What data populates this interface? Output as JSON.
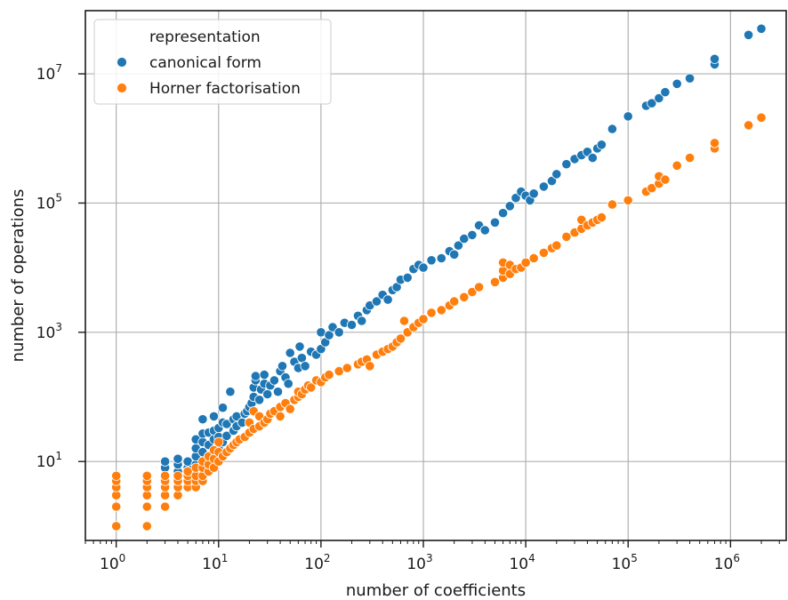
{
  "chart_data": {
    "type": "scatter",
    "x_scale": "log",
    "y_scale": "log",
    "xlabel": "number of coefficients",
    "ylabel": "number of operations",
    "xlim": [
      0.5,
      3500000
    ],
    "ylim": [
      0.6,
      95000000
    ],
    "x_tick_exponents": [
      0,
      1,
      2,
      3,
      4,
      5,
      6
    ],
    "y_tick_exponents": [
      1,
      3,
      5,
      7
    ],
    "tick_base": "10",
    "grid": true,
    "legend": {
      "title": "representation",
      "position": "top-left"
    },
    "series": [
      {
        "name": "canonical form",
        "color": "#1f77b4",
        "points": [
          [
            3,
            6
          ],
          [
            3,
            8
          ],
          [
            3,
            10
          ],
          [
            4,
            7
          ],
          [
            4,
            9
          ],
          [
            4,
            11
          ],
          [
            5,
            6
          ],
          [
            5,
            8
          ],
          [
            5,
            10
          ],
          [
            6,
            9
          ],
          [
            6,
            12
          ],
          [
            6,
            16
          ],
          [
            6,
            22
          ],
          [
            7,
            10
          ],
          [
            7,
            14
          ],
          [
            7,
            20
          ],
          [
            7,
            27
          ],
          [
            7,
            45
          ],
          [
            8,
            12
          ],
          [
            8,
            18
          ],
          [
            8,
            28
          ],
          [
            9,
            13
          ],
          [
            9,
            22
          ],
          [
            9,
            30
          ],
          [
            9,
            50
          ],
          [
            10,
            16
          ],
          [
            10,
            24
          ],
          [
            10,
            33
          ],
          [
            11,
            20
          ],
          [
            11,
            40
          ],
          [
            11,
            68
          ],
          [
            12,
            25
          ],
          [
            12,
            38
          ],
          [
            13,
            120
          ],
          [
            14,
            30
          ],
          [
            14,
            45
          ],
          [
            15,
            35
          ],
          [
            15,
            50
          ],
          [
            17,
            40
          ],
          [
            18,
            55
          ],
          [
            19,
            60
          ],
          [
            20,
            70
          ],
          [
            21,
            80
          ],
          [
            22,
            100
          ],
          [
            22,
            140
          ],
          [
            23,
            180
          ],
          [
            23,
            210
          ],
          [
            25,
            90
          ],
          [
            26,
            130
          ],
          [
            28,
            160
          ],
          [
            28,
            220
          ],
          [
            30,
            110
          ],
          [
            32,
            150
          ],
          [
            35,
            180
          ],
          [
            38,
            120
          ],
          [
            40,
            250
          ],
          [
            42,
            300
          ],
          [
            45,
            200
          ],
          [
            48,
            160
          ],
          [
            50,
            480
          ],
          [
            55,
            350
          ],
          [
            60,
            280
          ],
          [
            62,
            600
          ],
          [
            65,
            400
          ],
          [
            70,
            300
          ],
          [
            80,
            500
          ],
          [
            90,
            450
          ],
          [
            100,
            550
          ],
          [
            100,
            1000
          ],
          [
            110,
            700
          ],
          [
            120,
            900
          ],
          [
            130,
            1200
          ],
          [
            150,
            1000
          ],
          [
            170,
            1400
          ],
          [
            200,
            1300
          ],
          [
            230,
            1800
          ],
          [
            250,
            1500
          ],
          [
            280,
            2200
          ],
          [
            300,
            2600
          ],
          [
            350,
            3000
          ],
          [
            400,
            3800
          ],
          [
            450,
            3200
          ],
          [
            500,
            4500
          ],
          [
            550,
            5000
          ],
          [
            600,
            6500
          ],
          [
            700,
            7000
          ],
          [
            800,
            9500
          ],
          [
            900,
            11000
          ],
          [
            1000,
            10000
          ],
          [
            1200,
            13000
          ],
          [
            1500,
            14000
          ],
          [
            1800,
            18000
          ],
          [
            2000,
            16000
          ],
          [
            2200,
            22000
          ],
          [
            2500,
            28000
          ],
          [
            3000,
            32000
          ],
          [
            3500,
            45000
          ],
          [
            4000,
            38000
          ],
          [
            5000,
            50000
          ],
          [
            6000,
            70000
          ],
          [
            7000,
            90000
          ],
          [
            8000,
            120000
          ],
          [
            9000,
            150000
          ],
          [
            10000,
            130000
          ],
          [
            11000,
            110000
          ],
          [
            12000,
            140000
          ],
          [
            15000,
            180000
          ],
          [
            18000,
            220000
          ],
          [
            20000,
            280000
          ],
          [
            25000,
            400000
          ],
          [
            30000,
            480000
          ],
          [
            35000,
            550000
          ],
          [
            40000,
            620000
          ],
          [
            45000,
            500000
          ],
          [
            50000,
            700000
          ],
          [
            55000,
            800000
          ],
          [
            70000,
            1400000
          ],
          [
            100000,
            2200000
          ],
          [
            150000,
            3200000
          ],
          [
            170000,
            3500000
          ],
          [
            200000,
            4200000
          ],
          [
            230000,
            5200000
          ],
          [
            300000,
            7000000
          ],
          [
            400000,
            8500000
          ],
          [
            700000,
            14000000
          ],
          [
            700000,
            17000000
          ],
          [
            1500000,
            40000000
          ],
          [
            2000000,
            50000000
          ]
        ]
      },
      {
        "name": "Horner factorisation",
        "color": "#ff7f0e",
        "points": [
          [
            1,
            1
          ],
          [
            1,
            2
          ],
          [
            1,
            3
          ],
          [
            1,
            4
          ],
          [
            1,
            5
          ],
          [
            1,
            6
          ],
          [
            2,
            1
          ],
          [
            2,
            2
          ],
          [
            2,
            3
          ],
          [
            2,
            4
          ],
          [
            2,
            5
          ],
          [
            2,
            6
          ],
          [
            3,
            2
          ],
          [
            3,
            3
          ],
          [
            3,
            4
          ],
          [
            3,
            5
          ],
          [
            3,
            6
          ],
          [
            4,
            3
          ],
          [
            4,
            4
          ],
          [
            4,
            5
          ],
          [
            4,
            6
          ],
          [
            5,
            4
          ],
          [
            5,
            5
          ],
          [
            5,
            6
          ],
          [
            5,
            7
          ],
          [
            6,
            4
          ],
          [
            6,
            5
          ],
          [
            6,
            6
          ],
          [
            6,
            8
          ],
          [
            7,
            5
          ],
          [
            7,
            6
          ],
          [
            7,
            8
          ],
          [
            7,
            10
          ],
          [
            8,
            7
          ],
          [
            8,
            9
          ],
          [
            8,
            12
          ],
          [
            9,
            8
          ],
          [
            9,
            11
          ],
          [
            9,
            15
          ],
          [
            10,
            10
          ],
          [
            10,
            14
          ],
          [
            10,
            20
          ],
          [
            11,
            12
          ],
          [
            12,
            14
          ],
          [
            13,
            16
          ],
          [
            14,
            18
          ],
          [
            15,
            20
          ],
          [
            16,
            22
          ],
          [
            18,
            24
          ],
          [
            20,
            28
          ],
          [
            20,
            40
          ],
          [
            22,
            32
          ],
          [
            22,
            60
          ],
          [
            25,
            35
          ],
          [
            25,
            50
          ],
          [
            28,
            40
          ],
          [
            30,
            45
          ],
          [
            32,
            55
          ],
          [
            35,
            60
          ],
          [
            40,
            50
          ],
          [
            40,
            70
          ],
          [
            45,
            80
          ],
          [
            50,
            65
          ],
          [
            55,
            90
          ],
          [
            60,
            100
          ],
          [
            60,
            120
          ],
          [
            65,
            110
          ],
          [
            70,
            130
          ],
          [
            75,
            150
          ],
          [
            80,
            140
          ],
          [
            90,
            180
          ],
          [
            100,
            170
          ],
          [
            110,
            200
          ],
          [
            120,
            220
          ],
          [
            150,
            250
          ],
          [
            180,
            280
          ],
          [
            230,
            320
          ],
          [
            250,
            350
          ],
          [
            280,
            380
          ],
          [
            300,
            300
          ],
          [
            350,
            450
          ],
          [
            400,
            500
          ],
          [
            450,
            550
          ],
          [
            500,
            600
          ],
          [
            550,
            700
          ],
          [
            600,
            800
          ],
          [
            650,
            1500
          ],
          [
            700,
            1000
          ],
          [
            800,
            1200
          ],
          [
            900,
            1400
          ],
          [
            1000,
            1600
          ],
          [
            1200,
            2000
          ],
          [
            1500,
            2200
          ],
          [
            1800,
            2600
          ],
          [
            2000,
            3000
          ],
          [
            2500,
            3500
          ],
          [
            3000,
            4200
          ],
          [
            3500,
            5000
          ],
          [
            5000,
            6000
          ],
          [
            6000,
            7000
          ],
          [
            6000,
            9000
          ],
          [
            6000,
            12000
          ],
          [
            7000,
            8000
          ],
          [
            7000,
            11000
          ],
          [
            8000,
            9500
          ],
          [
            9000,
            10000
          ],
          [
            10000,
            12000
          ],
          [
            12000,
            14000
          ],
          [
            15000,
            17000
          ],
          [
            18000,
            20000
          ],
          [
            20000,
            22000
          ],
          [
            25000,
            30000
          ],
          [
            30000,
            35000
          ],
          [
            35000,
            40000
          ],
          [
            35000,
            55000
          ],
          [
            40000,
            45000
          ],
          [
            45000,
            50000
          ],
          [
            50000,
            55000
          ],
          [
            55000,
            60000
          ],
          [
            70000,
            95000
          ],
          [
            100000,
            110000
          ],
          [
            150000,
            150000
          ],
          [
            170000,
            170000
          ],
          [
            200000,
            200000
          ],
          [
            200000,
            260000
          ],
          [
            230000,
            230000
          ],
          [
            300000,
            380000
          ],
          [
            400000,
            500000
          ],
          [
            700000,
            700000
          ],
          [
            700000,
            850000
          ],
          [
            1500000,
            1600000
          ],
          [
            2000000,
            2100000
          ]
        ]
      }
    ]
  }
}
